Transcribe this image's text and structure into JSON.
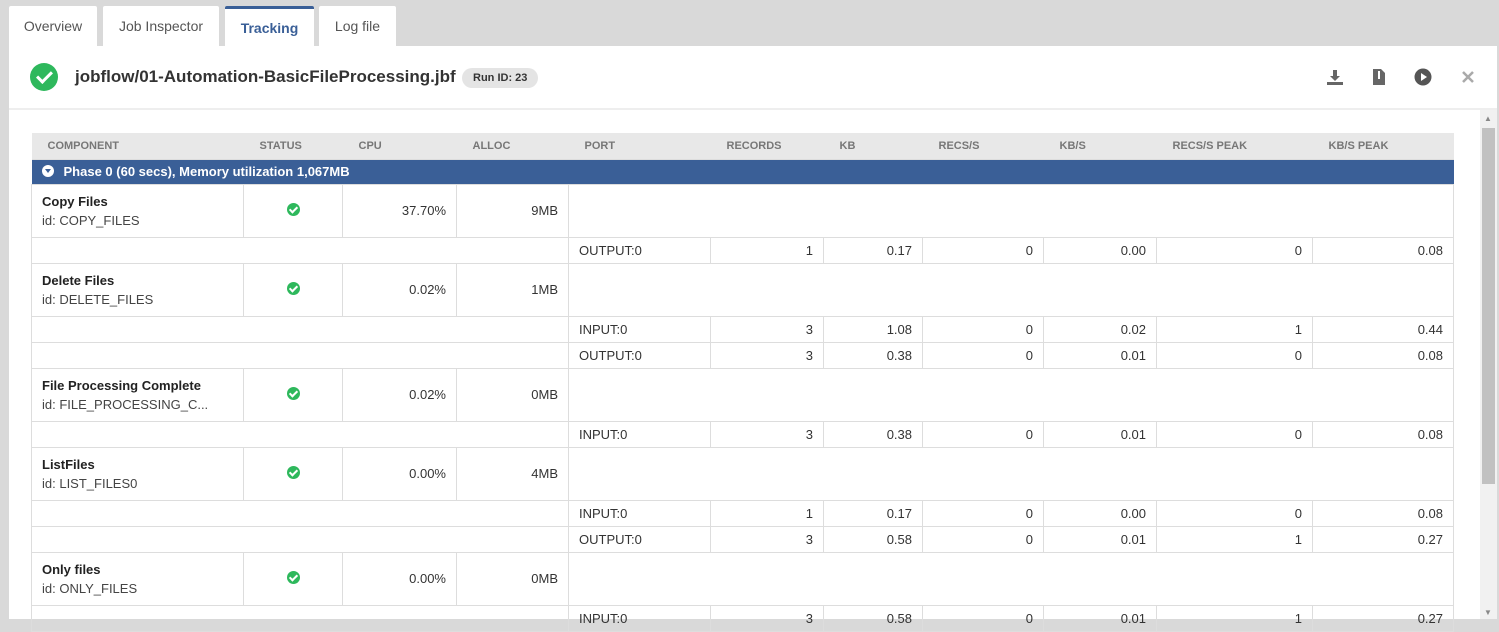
{
  "tabs": [
    {
      "label": "Overview"
    },
    {
      "label": "Job Inspector"
    },
    {
      "label": "Tracking",
      "active": true
    },
    {
      "label": "Log file"
    }
  ],
  "header": {
    "title": "jobflow/01-Automation-BasicFileProcessing.jbf",
    "run_id": "Run ID: 23",
    "status": "success",
    "actions": [
      "download-icon",
      "file-zip-icon",
      "play-icon",
      "close-icon"
    ]
  },
  "columns": [
    "COMPONENT",
    "STATUS",
    "CPU",
    "ALLOC",
    "PORT",
    "RECORDS",
    "KB",
    "RECS/S",
    "KB/S",
    "RECS/S PEAK",
    "KB/S PEAK"
  ],
  "phase": {
    "label": "Phase 0 (60 secs), Memory utilization 1,067MB"
  },
  "colors": {
    "accent": "#3a5f97",
    "success": "#2eb85c"
  },
  "components": [
    {
      "name": "Copy Files",
      "id": "id: COPY_FILES",
      "cpu": "37.70%",
      "alloc": "9MB",
      "ports": [
        [
          "OUTPUT:0",
          "1",
          "0.17",
          "0",
          "0.00",
          "0",
          "0.08"
        ]
      ]
    },
    {
      "name": "Delete Files",
      "id": "id: DELETE_FILES",
      "cpu": "0.02%",
      "alloc": "1MB",
      "ports": [
        [
          "INPUT:0",
          "3",
          "1.08",
          "0",
          "0.02",
          "1",
          "0.44"
        ],
        [
          "OUTPUT:0",
          "3",
          "0.38",
          "0",
          "0.01",
          "0",
          "0.08"
        ]
      ]
    },
    {
      "name": "File Processing Complete",
      "id": "id: FILE_PROCESSING_C...",
      "cpu": "0.02%",
      "alloc": "0MB",
      "ports": [
        [
          "INPUT:0",
          "3",
          "0.38",
          "0",
          "0.01",
          "0",
          "0.08"
        ]
      ]
    },
    {
      "name": "ListFiles",
      "id": "id: LIST_FILES0",
      "cpu": "0.00%",
      "alloc": "4MB",
      "ports": [
        [
          "INPUT:0",
          "1",
          "0.17",
          "0",
          "0.00",
          "0",
          "0.08"
        ],
        [
          "OUTPUT:0",
          "3",
          "0.58",
          "0",
          "0.01",
          "1",
          "0.27"
        ]
      ]
    },
    {
      "name": "Only files",
      "id": "id: ONLY_FILES",
      "cpu": "0.00%",
      "alloc": "0MB",
      "ports": [
        [
          "INPUT:0",
          "3",
          "0.58",
          "0",
          "0.01",
          "1",
          "0.27"
        ]
      ]
    }
  ]
}
